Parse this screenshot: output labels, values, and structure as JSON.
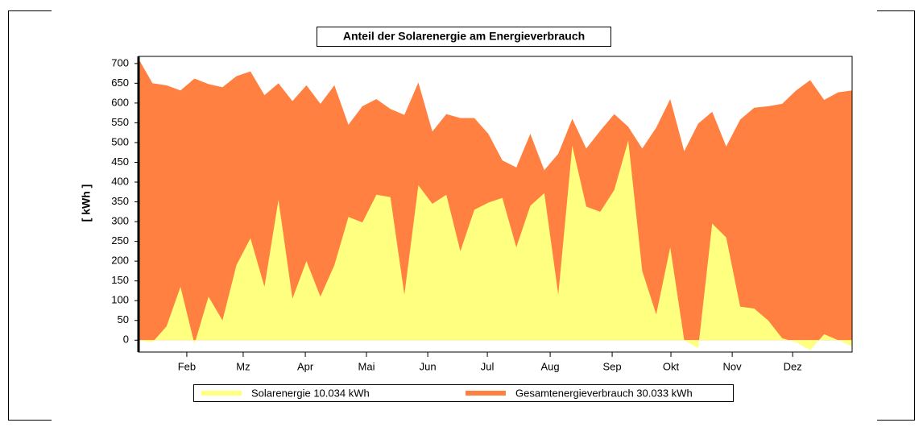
{
  "chart_data": {
    "type": "area",
    "title": "Anteil der Solarenergie am Energieverbrauch",
    "y_label": "[ kWh ]",
    "x": [
      1,
      2,
      3,
      4,
      5,
      6,
      7,
      8,
      9,
      10,
      11,
      12,
      13,
      14,
      15,
      16,
      17,
      18,
      19,
      20,
      21,
      22,
      23,
      24,
      25,
      26,
      27,
      28,
      29,
      30,
      31,
      32,
      33,
      34,
      35,
      36,
      37,
      38,
      39,
      40,
      41,
      42,
      43,
      44,
      45,
      46,
      47,
      48,
      49,
      50,
      51,
      52
    ],
    "xlim": [
      1,
      52
    ],
    "xticks": [
      {
        "value": 4.45,
        "label": "Feb"
      },
      {
        "value": 8.48,
        "label": "Mz"
      },
      {
        "value": 12.92,
        "label": "Apr"
      },
      {
        "value": 17.29,
        "label": "Mai"
      },
      {
        "value": 21.67,
        "label": "Jun"
      },
      {
        "value": 25.93,
        "label": "Jul"
      },
      {
        "value": 30.42,
        "label": "Aug"
      },
      {
        "value": 34.85,
        "label": "Sep"
      },
      {
        "value": 39.05,
        "label": "Okt"
      },
      {
        "value": 43.43,
        "label": "Nov"
      },
      {
        "value": 47.75,
        "label": "Dez"
      }
    ],
    "ylim": [
      -30,
      718
    ],
    "yticks": [
      0,
      50,
      100,
      150,
      200,
      250,
      300,
      350,
      400,
      450,
      500,
      550,
      600,
      650,
      700
    ],
    "series": [
      {
        "name": "Gesamtenergieverbrauch 30.033 kWh",
        "color": "#ff8040",
        "values": [
          712,
          650,
          645,
          632,
          662,
          648,
          640,
          668,
          680,
          620,
          650,
          605,
          645,
          598,
          645,
          545,
          592,
          610,
          585,
          570,
          652,
          528,
          572,
          562,
          562,
          522,
          455,
          437,
          522,
          430,
          472,
          560,
          485,
          530,
          572,
          540,
          485,
          538,
          610,
          478,
          548,
          578,
          490,
          558,
          588,
          592,
          598,
          632,
          658,
          608,
          627,
          632
        ]
      },
      {
        "name": "Solarenergie 10.034 kWh",
        "color": "#ffff80",
        "values": [
          0,
          -5,
          35,
          135,
          -10,
          110,
          50,
          190,
          258,
          135,
          355,
          105,
          200,
          110,
          190,
          312,
          298,
          368,
          362,
          115,
          392,
          345,
          368,
          225,
          330,
          348,
          360,
          235,
          340,
          372,
          115,
          492,
          338,
          325,
          380,
          505,
          175,
          65,
          235,
          0,
          -20,
          295,
          260,
          85,
          80,
          50,
          5,
          -5,
          -25,
          15,
          0,
          -15
        ]
      }
    ]
  }
}
